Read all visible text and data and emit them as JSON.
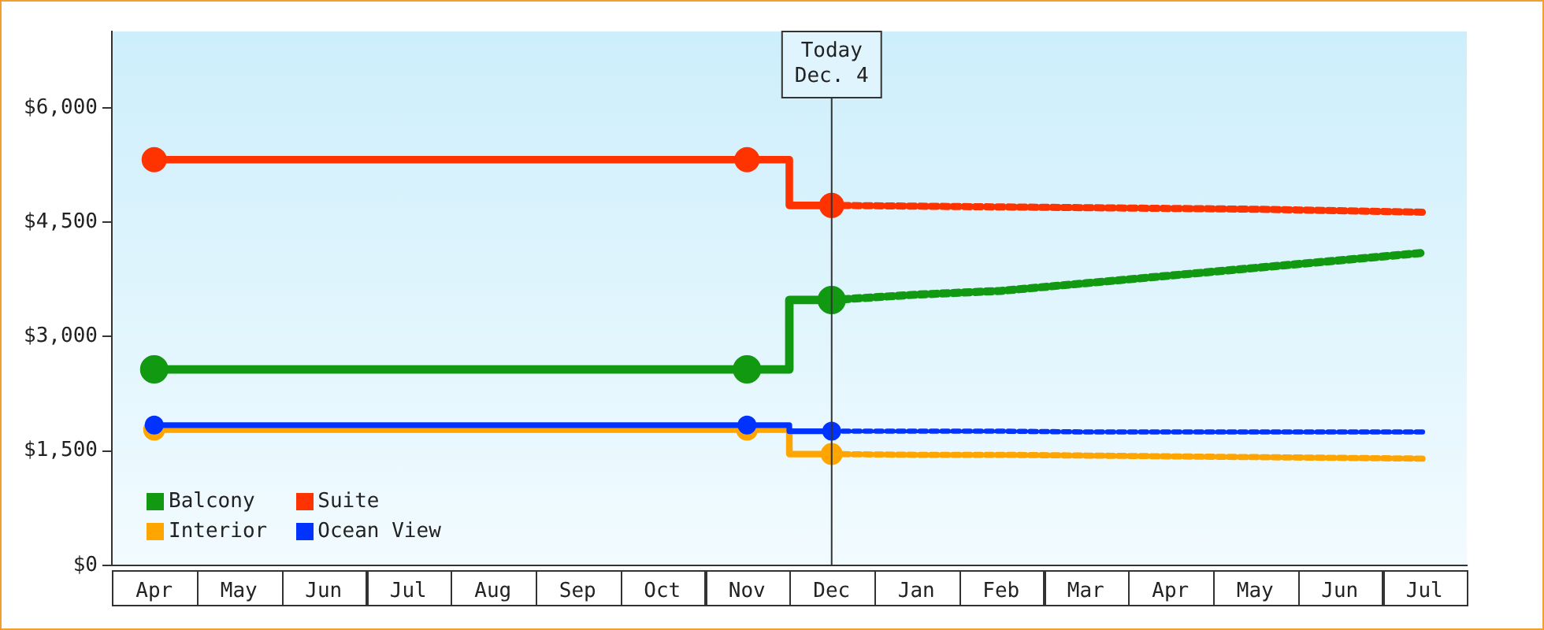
{
  "chart_data": {
    "type": "line",
    "categories": [
      "Apr",
      "May",
      "Jun",
      "Jul",
      "Aug",
      "Sep",
      "Oct",
      "Nov",
      "Dec",
      "Jan",
      "Feb",
      "Mar",
      "Apr",
      "May",
      "Jun",
      "Jul"
    ],
    "ylim": [
      0,
      7000
    ],
    "yticks": [
      {
        "value": 0,
        "label": "$0"
      },
      {
        "value": 1500,
        "label": "$1,500"
      },
      {
        "value": 3000,
        "label": "$3,000"
      },
      {
        "value": 4500,
        "label": "$4,500"
      },
      {
        "value": 6000,
        "label": "$6,000"
      }
    ],
    "legend": "bottom left",
    "ref_lines": [
      {
        "axis": "x",
        "value": "Dec",
        "label": "Today\nDec. 4"
      }
    ],
    "series": [
      {
        "name": "Balcony",
        "type": "step",
        "color": "#119911",
        "marker": "circle",
        "line_style": "solid",
        "values": [
          2570,
          null,
          null,
          null,
          null,
          null,
          null,
          2570,
          3480,
          null,
          null,
          null,
          null,
          null,
          null,
          null
        ]
      },
      {
        "color": "#119911",
        "marker": "none",
        "line_style": "dotted",
        "values": [
          null,
          null,
          null,
          null,
          null,
          null,
          null,
          null,
          3480,
          3550,
          3600,
          3700,
          3800,
          3900,
          4000,
          4100
        ]
      },
      {
        "name": "Suite",
        "type": "step",
        "color": "#ff3300",
        "marker": "circle",
        "line_style": "solid",
        "values": [
          5320,
          null,
          null,
          null,
          null,
          null,
          null,
          5320,
          4720,
          null,
          null,
          null,
          null,
          null,
          null,
          null
        ]
      },
      {
        "color": "#ff3300",
        "marker": "none",
        "line_style": "dotted",
        "values": [
          null,
          null,
          null,
          null,
          null,
          null,
          null,
          null,
          4720,
          4710,
          4700,
          4690,
          4680,
          4670,
          4650,
          4630
        ]
      },
      {
        "name": "Interior",
        "type": "step",
        "color": "#ffa500",
        "marker": "circle",
        "line_style": "solid",
        "values": [
          1780,
          null,
          null,
          null,
          null,
          null,
          null,
          1780,
          1460,
          null,
          null,
          null,
          null,
          null,
          null,
          null
        ]
      },
      {
        "color": "#ffa500",
        "marker": "none",
        "line_style": "dotted",
        "values": [
          null,
          null,
          null,
          null,
          null,
          null,
          null,
          null,
          1460,
          1450,
          1450,
          1440,
          1430,
          1420,
          1410,
          1400
        ]
      },
      {
        "name": "Ocean View",
        "type": "step",
        "color": "#0033ff",
        "marker": "circle",
        "line_style": "solid",
        "values": [
          1840,
          null,
          null,
          null,
          null,
          null,
          null,
          1840,
          1760,
          null,
          null,
          null,
          null,
          null,
          null,
          null
        ]
      },
      {
        "color": "#0033ff",
        "marker": "none",
        "line_style": "dotted",
        "values": [
          null,
          null,
          null,
          null,
          null,
          null,
          null,
          null,
          1760,
          1760,
          1760,
          1750,
          1750,
          1750,
          1750,
          1750
        ]
      }
    ]
  }
}
